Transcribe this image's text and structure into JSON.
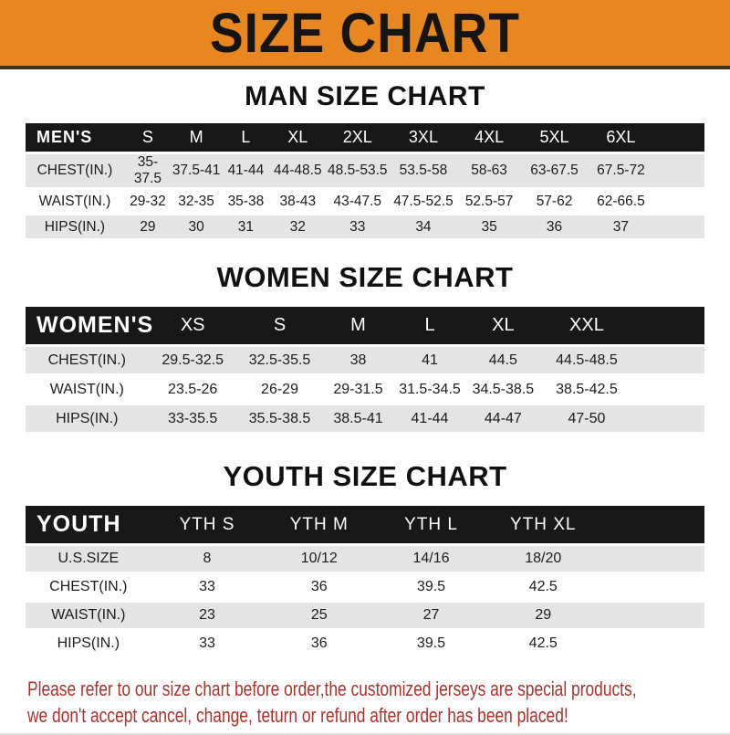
{
  "banner": {
    "title": "SIZE CHART",
    "bg_color": "#E8861F",
    "text_color": "#151515"
  },
  "sections": [
    {
      "heading": "MAN SIZE CHART",
      "table": {
        "group_label": "MEN'S",
        "columns": [
          "S",
          "M",
          "L",
          "XL",
          "2XL",
          "3XL",
          "4XL",
          "5XL",
          "6XL"
        ],
        "rows": [
          {
            "label": "CHEST(IN.)",
            "values": [
              "35-37.5",
              "37.5-41",
              "41-44",
              "44-48.5",
              "48.5-53.5",
              "53.5-58",
              "58-63",
              "63-67.5",
              "67.5-72"
            ]
          },
          {
            "label": "WAIST(IN.)",
            "values": [
              "29-32",
              "32-35",
              "35-38",
              "38-43",
              "43-47.5",
              "47.5-52.5",
              "52.5-57",
              "57-62",
              "62-66.5"
            ]
          },
          {
            "label": "HIPS(IN.)",
            "values": [
              "29",
              "30",
              "31",
              "32",
              "33",
              "34",
              "35",
              "36",
              "37"
            ]
          }
        ]
      }
    },
    {
      "heading": "WOMEN SIZE CHART",
      "table": {
        "group_label": "WOMEN'S",
        "columns": [
          "XS",
          "S",
          "M",
          "L",
          "XL",
          "XXL"
        ],
        "rows": [
          {
            "label": "CHEST(IN.)",
            "values": [
              "29.5-32.5",
              "32.5-35.5",
              "38",
              "41",
              "44.5",
              "44.5-48.5"
            ]
          },
          {
            "label": "WAIST(IN.)",
            "values": [
              "23.5-26",
              "26-29",
              "29-31.5",
              "31.5-34.5",
              "34.5-38.5",
              "38.5-42.5"
            ]
          },
          {
            "label": "HIPS(IN.)",
            "values": [
              "33-35.5",
              "35.5-38.5",
              "38.5-41",
              "41-44",
              "44-47",
              "47-50"
            ]
          }
        ]
      }
    },
    {
      "heading": "YOUTH SIZE CHART",
      "table": {
        "group_label": "YOUTH",
        "columns": [
          "YTH S",
          "YTH M",
          "YTH L",
          "YTH XL"
        ],
        "rows": [
          {
            "label": "U.S.SIZE",
            "values": [
              "8",
              "10/12",
              "14/16",
              "18/20"
            ]
          },
          {
            "label": "CHEST(IN.)",
            "values": [
              "33",
              "36",
              "39.5",
              "42.5"
            ]
          },
          {
            "label": "WAIST(IN.)",
            "values": [
              "23",
              "25",
              "27",
              "29"
            ]
          },
          {
            "label": "HIPS(IN.)",
            "values": [
              "33",
              "36",
              "39.5",
              "42.5"
            ]
          }
        ]
      }
    }
  ],
  "footer": {
    "lines": [
      "Please refer to our size chart before order,the customized jerseys are special products,",
      "we don't accept cancel, change, teturn or refund after order has been placed!"
    ],
    "text_color": "#A9322C"
  },
  "colors": {
    "header_bar": "#181818",
    "row_alt": "#E4E4E4",
    "row_base": "#FFFFFF",
    "banner_border": "#43300E"
  }
}
